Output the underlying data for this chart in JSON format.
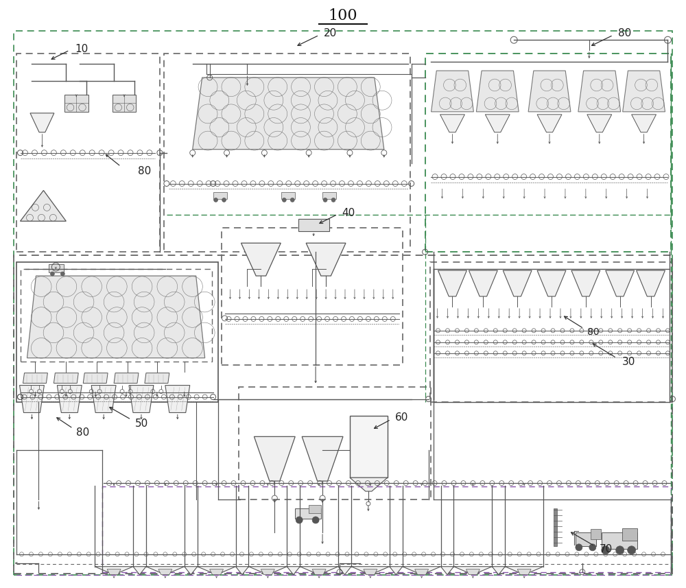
{
  "title": "100",
  "background": "#ffffff",
  "lc": "#555555",
  "dc": "#666666",
  "gc": "#3a8a50",
  "pc": "#8855aa",
  "figsize": [
    10.0,
    8.57
  ],
  "dpi": 100
}
